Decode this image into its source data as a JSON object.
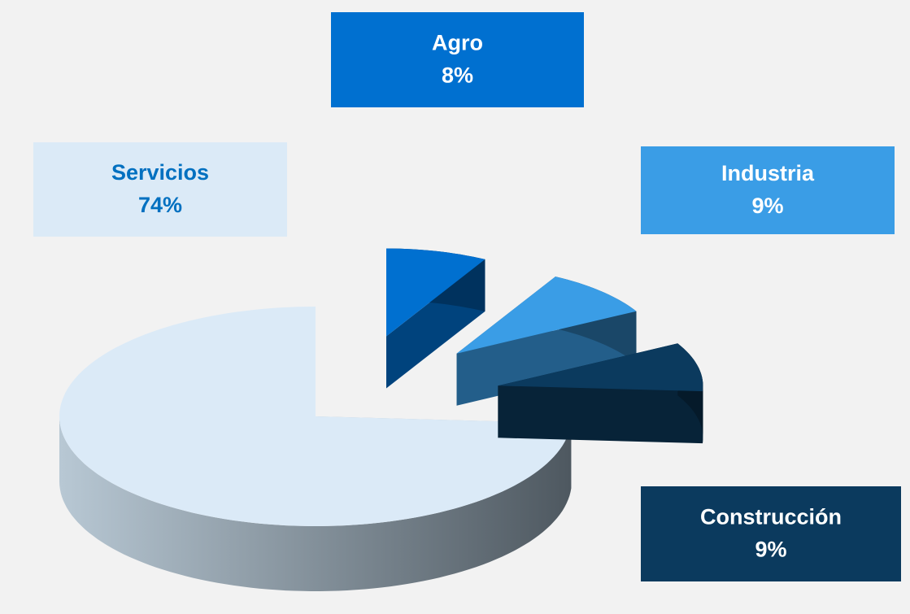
{
  "chart_data": {
    "type": "pie3d",
    "categories": [
      "Agro",
      "Industria",
      "Construcción",
      "Servicios"
    ],
    "values": [
      8,
      9,
      9,
      74
    ],
    "value_labels": [
      "8%",
      "9%",
      "9%",
      "74%"
    ],
    "colors": [
      "#0070d0",
      "#3a9de6",
      "#0b3a5e",
      "#dbeaf7"
    ]
  }
}
